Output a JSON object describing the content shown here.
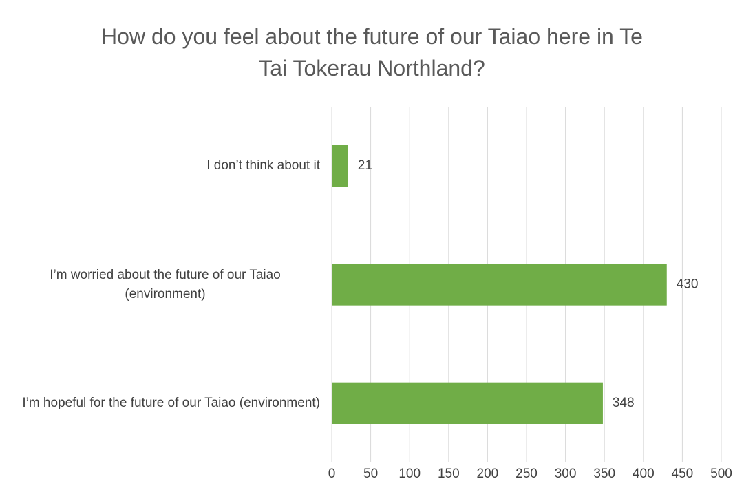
{
  "chart_data": {
    "type": "barh",
    "title": "How do you feel about the future of our Taiao here in Te Tai Tokerau Northland?",
    "categories": [
      "I don’t think about it",
      "I’m worried about the future of our Taiao (environment)",
      "I’m hopeful for the future of our Taiao (environment)"
    ],
    "values": [
      21,
      430,
      348
    ],
    "color": "#70ad47",
    "xlim": [
      0,
      500
    ],
    "xticks": [
      0,
      50,
      100,
      150,
      200,
      250,
      300,
      350,
      400,
      450,
      500
    ],
    "grid": true
  }
}
